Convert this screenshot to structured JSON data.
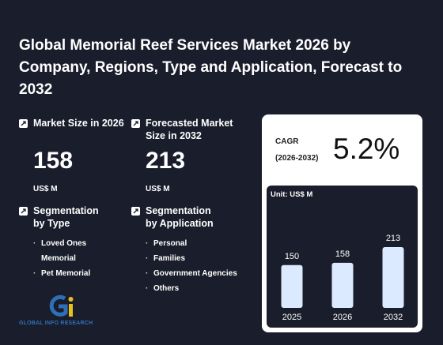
{
  "title": "Global Memorial Reef Services Market 2026 by Company, Regions, Type and Application, Forecast to 2032",
  "market_size": {
    "label": "Market Size in 2026",
    "value": "158",
    "unit": "US$ M"
  },
  "forecast_size": {
    "label": "Forecasted Market Size in 2032",
    "value": "213",
    "unit": "US$ M"
  },
  "segmentation_type": {
    "label": "Segmentation by Type",
    "items": [
      "Loved Ones Memorial",
      "Pet Memorial"
    ]
  },
  "segmentation_application": {
    "label": "Segmentation by Application",
    "items": [
      "Personal",
      "Families",
      "Government Agencies",
      "Others"
    ]
  },
  "logo": {
    "text": "GLOBAL INFO RESEARCH"
  },
  "cagr": {
    "label": "CAGR",
    "period": "(2026-2032)",
    "value": "5.2%"
  },
  "chart_data": {
    "type": "bar",
    "unit_label": "Unit: US$ M",
    "categories": [
      "2025",
      "2026",
      "2032"
    ],
    "values": [
      150,
      158,
      213
    ],
    "bar_color": "#dbeafe"
  },
  "colors": {
    "background": "#1a1d2b",
    "card": "#ffffff",
    "logo_blue": "#2e6fb7",
    "logo_yellow": "#e8c21a"
  }
}
